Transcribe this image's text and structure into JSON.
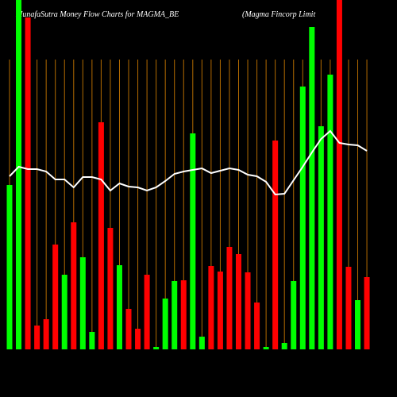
{
  "chart_data": {
    "type": "bar",
    "title": "MunafaSutra  Money Flow  Charts for MAGMA_BE",
    "subtitle": "(Magma  Fincorp Limit",
    "categories": [
      null,
      null,
      null,
      null,
      null,
      null,
      null,
      null,
      null,
      null,
      null,
      null,
      null,
      null,
      null,
      null,
      null,
      null,
      null,
      null,
      null,
      null,
      null,
      null,
      null,
      null,
      null,
      null,
      null,
      null,
      null,
      null,
      null,
      null,
      null,
      null,
      null,
      null,
      null,
      null
    ],
    "values": [
      207,
      460,
      418,
      30,
      38,
      132,
      94,
      160,
      116,
      22,
      286,
      153,
      106,
      51,
      26,
      94,
      3,
      64,
      86,
      87,
      272,
      16,
      105,
      98,
      129,
      120,
      97,
      59,
      3,
      263,
      8,
      86,
      331,
      406,
      281,
      346,
      460,
      104,
      62,
      91
    ],
    "colors": [
      "#00ff00",
      "#00ff00",
      "#ff0000",
      "#ff0000",
      "#ff0000",
      "#ff0000",
      "#00ff00",
      "#ff0000",
      "#00ff00",
      "#00ff00",
      "#ff0000",
      "#ff0000",
      "#00ff00",
      "#ff0000",
      "#ff0000",
      "#ff0000",
      "#00ff00",
      "#00ff00",
      "#00ff00",
      "#ff0000",
      "#00ff00",
      "#00ff00",
      "#ff0000",
      "#ff0000",
      "#ff0000",
      "#ff0000",
      "#ff0000",
      "#ff0000",
      "#00ff00",
      "#ff0000",
      "#00ff00",
      "#00ff00",
      "#00ff00",
      "#00ff00",
      "#00ff00",
      "#00ff00",
      "#ff0000",
      "#ff0000",
      "#00ff00",
      "#ff0000"
    ],
    "line_values": [
      218,
      230,
      227,
      227,
      224,
      214,
      214,
      204,
      217,
      217,
      214,
      200,
      209,
      205,
      204,
      200,
      204,
      212,
      221,
      224,
      226,
      228,
      222,
      225,
      228,
      226,
      220,
      218,
      211,
      195,
      196,
      213,
      230,
      248,
      265,
      275,
      260,
      258,
      257,
      250
    ],
    "line_color": "#ffffff",
    "ylim": [
      0,
      440
    ]
  }
}
